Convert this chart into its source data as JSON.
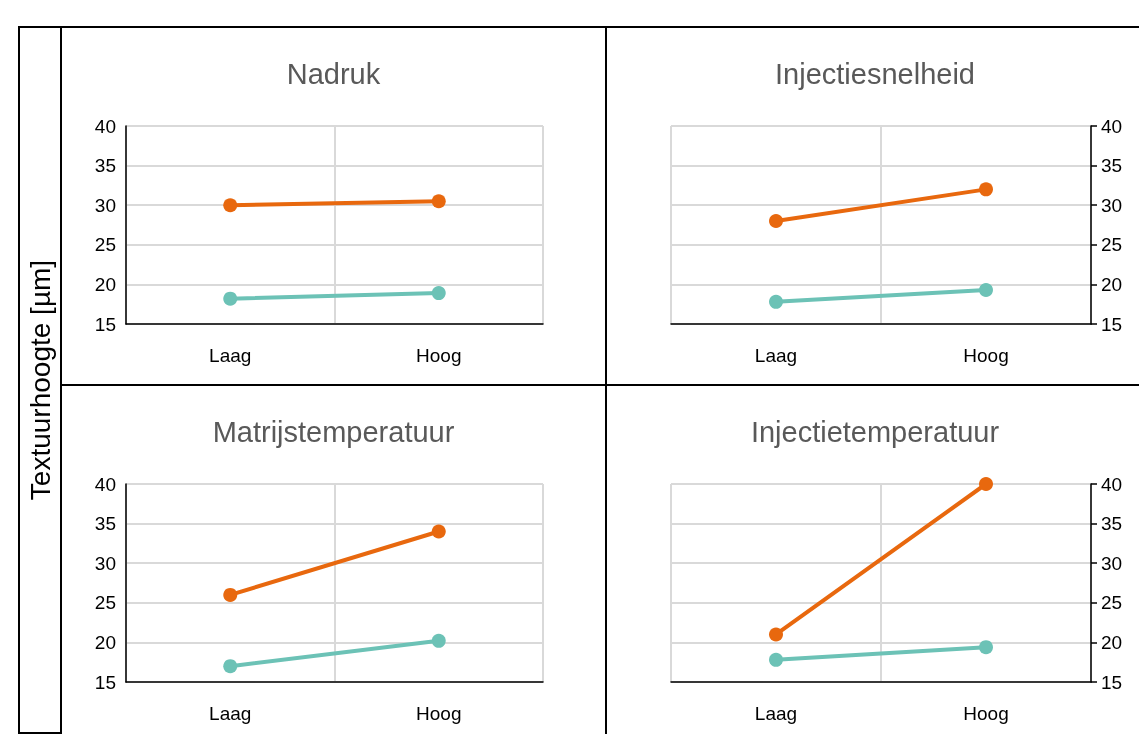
{
  "chart_data": [
    {
      "type": "line",
      "title": "Nadruk",
      "ylabel": "Textuurhoogte [µm]",
      "categories": [
        "Laag",
        "Hoog"
      ],
      "ylim": [
        15,
        40
      ],
      "yticks": [
        15,
        20,
        25,
        30,
        35,
        40
      ],
      "grid": true,
      "marker": "circle",
      "line_style": "solid",
      "series": [
        {
          "color": "#e8680e",
          "values": [
            30,
            30.5
          ]
        },
        {
          "color": "#6cc2b6",
          "values": [
            18.2,
            18.9
          ]
        }
      ]
    },
    {
      "type": "line",
      "title": "Injectiesnelheid",
      "categories": [
        "Laag",
        "Hoog"
      ],
      "y2lim": [
        15,
        40
      ],
      "y2ticks": [
        15,
        20,
        25,
        30,
        35,
        40
      ],
      "grid": true,
      "marker": "circle",
      "line_style": "solid",
      "series": [
        {
          "color": "#e8680e",
          "values": [
            28,
            32
          ],
          "axis": "y2"
        },
        {
          "color": "#6cc2b6",
          "values": [
            17.8,
            19.3
          ],
          "axis": "y2"
        }
      ]
    },
    {
      "type": "line",
      "title": "Matrijstemperatuur",
      "categories": [
        "Laag",
        "Hoog"
      ],
      "ylim": [
        15,
        40
      ],
      "yticks": [
        15,
        20,
        25,
        30,
        35,
        40
      ],
      "grid": true,
      "marker": "circle",
      "line_style": "solid",
      "series": [
        {
          "color": "#e8680e",
          "values": [
            26,
            34
          ]
        },
        {
          "color": "#6cc2b6",
          "values": [
            17,
            20.2
          ]
        }
      ]
    },
    {
      "type": "line",
      "title": "Injectietemperatuur",
      "categories": [
        "Laag",
        "Hoog"
      ],
      "y2lim": [
        15,
        40
      ],
      "y2ticks": [
        15,
        20,
        25,
        30,
        35,
        40
      ],
      "grid": true,
      "marker": "circle",
      "line_style": "solid",
      "series": [
        {
          "color": "#e8680e",
          "values": [
            21,
            40
          ],
          "axis": "y2"
        },
        {
          "color": "#6cc2b6",
          "values": [
            17.8,
            19.4
          ],
          "axis": "y2"
        }
      ]
    }
  ]
}
